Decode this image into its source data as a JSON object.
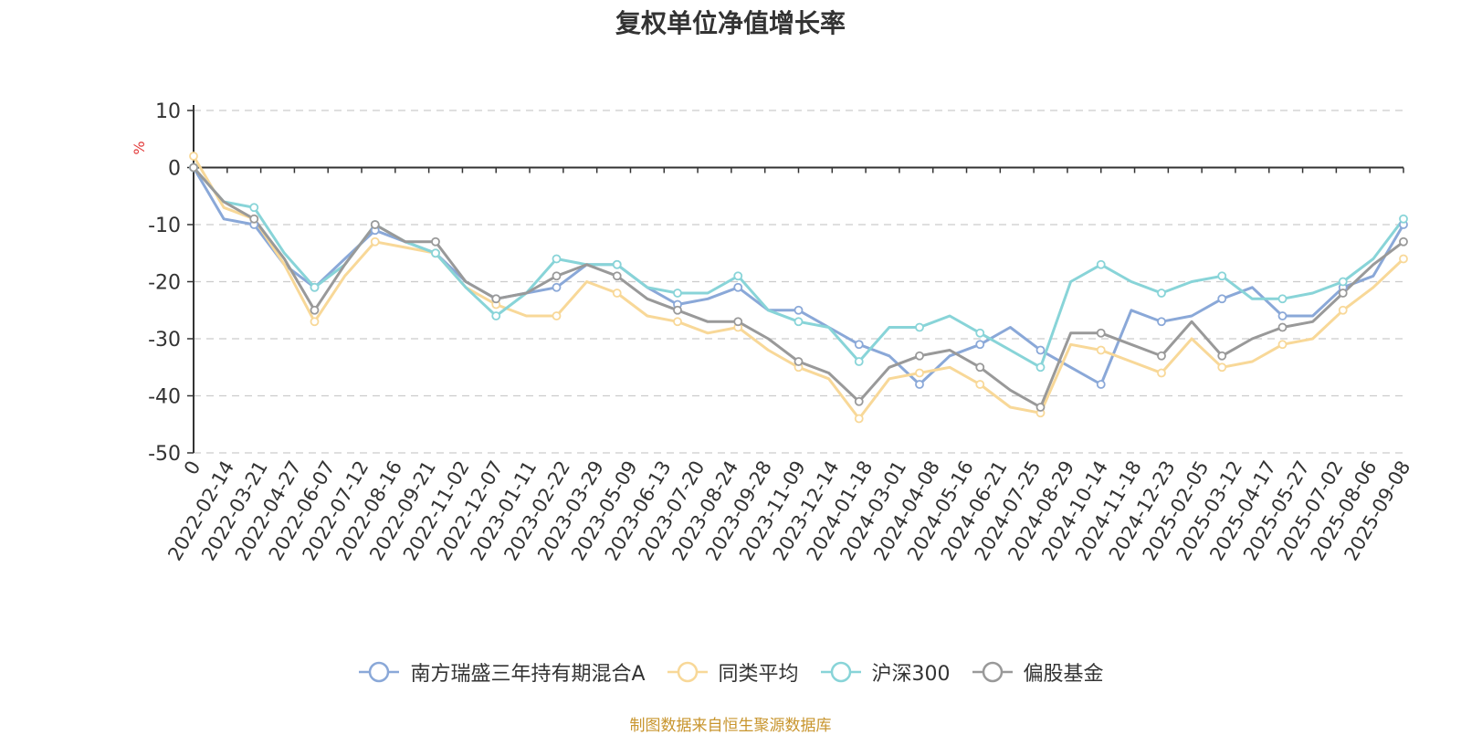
{
  "chart_data": {
    "type": "line",
    "title": "复权单位净值增长率",
    "ylabel": "%",
    "xlabel": "",
    "ylim": [
      -50,
      10
    ],
    "yticks": [
      10,
      0,
      -10,
      -20,
      -30,
      -40,
      -50
    ],
    "grid": true,
    "legend_position": "bottom",
    "x_tick_labels": [
      "0",
      "2022-02-14",
      "2022-03-21",
      "2022-04-27",
      "2022-06-07",
      "2022-07-12",
      "2022-08-16",
      "2022-09-21",
      "2022-11-02",
      "2022-12-07",
      "2023-01-11",
      "2023-02-22",
      "2023-03-29",
      "2023-05-09",
      "2023-06-13",
      "2023-07-20",
      "2023-08-24",
      "2023-09-28",
      "2023-11-09",
      "2023-12-14",
      "2024-01-18",
      "2024-03-01",
      "2024-04-08",
      "2024-05-16",
      "2024-06-21",
      "2024-07-25",
      "2024-08-29",
      "2024-10-14",
      "2024-11-18",
      "2024-12-23",
      "2025-02-05",
      "2025-03-12",
      "2025-04-17",
      "2025-05-27",
      "2025-07-02",
      "2025-08-06",
      "2025-09-08"
    ],
    "series": [
      {
        "name": "南方瑞盛三年持有期混合A",
        "color": "#8aa8d8",
        "values": [
          0,
          -9,
          -10,
          -17,
          -21,
          -16,
          -11,
          -13,
          -15,
          -20,
          -23,
          -22,
          -21,
          -17,
          -17,
          -21,
          -24,
          -23,
          -21,
          -25,
          -25,
          -28,
          -31,
          -33,
          -38,
          -33,
          -31,
          -28,
          -32,
          -35,
          -38,
          -25,
          -27,
          -26,
          -23,
          -21,
          -26,
          -26,
          -21,
          -19,
          -10
        ]
      },
      {
        "name": "同类平均",
        "color": "#f8d898",
        "values": [
          2,
          -7,
          -9,
          -17,
          -27,
          -19,
          -13,
          -14,
          -15,
          -21,
          -24,
          -26,
          -26,
          -20,
          -22,
          -26,
          -27,
          -29,
          -28,
          -32,
          -35,
          -37,
          -44,
          -37,
          -36,
          -35,
          -38,
          -42,
          -43,
          -31,
          -32,
          -34,
          -36,
          -30,
          -35,
          -34,
          -31,
          -30,
          -25,
          -21,
          -16
        ]
      },
      {
        "name": "沪深300",
        "color": "#88d4d8",
        "values": [
          0,
          -6,
          -7,
          -15,
          -21,
          -17,
          -10,
          -13,
          -15,
          -21,
          -26,
          -22,
          -16,
          -17,
          -17,
          -21,
          -22,
          -22,
          -19,
          -25,
          -27,
          -28,
          -34,
          -28,
          -28,
          -26,
          -29,
          -32,
          -35,
          -20,
          -17,
          -20,
          -22,
          -20,
          -19,
          -23,
          -23,
          -22,
          -20,
          -16,
          -9
        ]
      },
      {
        "name": "偏股基金",
        "color": "#999999",
        "values": [
          0,
          -6,
          -9,
          -16,
          -25,
          -17,
          -10,
          -13,
          -13,
          -20,
          -23,
          -22,
          -19,
          -17,
          -19,
          -23,
          -25,
          -27,
          -27,
          -30,
          -34,
          -36,
          -41,
          -35,
          -33,
          -32,
          -35,
          -39,
          -42,
          -29,
          -29,
          -31,
          -33,
          -27,
          -33,
          -30,
          -28,
          -27,
          -22,
          -17,
          -13
        ]
      }
    ]
  },
  "source_note": "制图数据来自恒生聚源数据库"
}
